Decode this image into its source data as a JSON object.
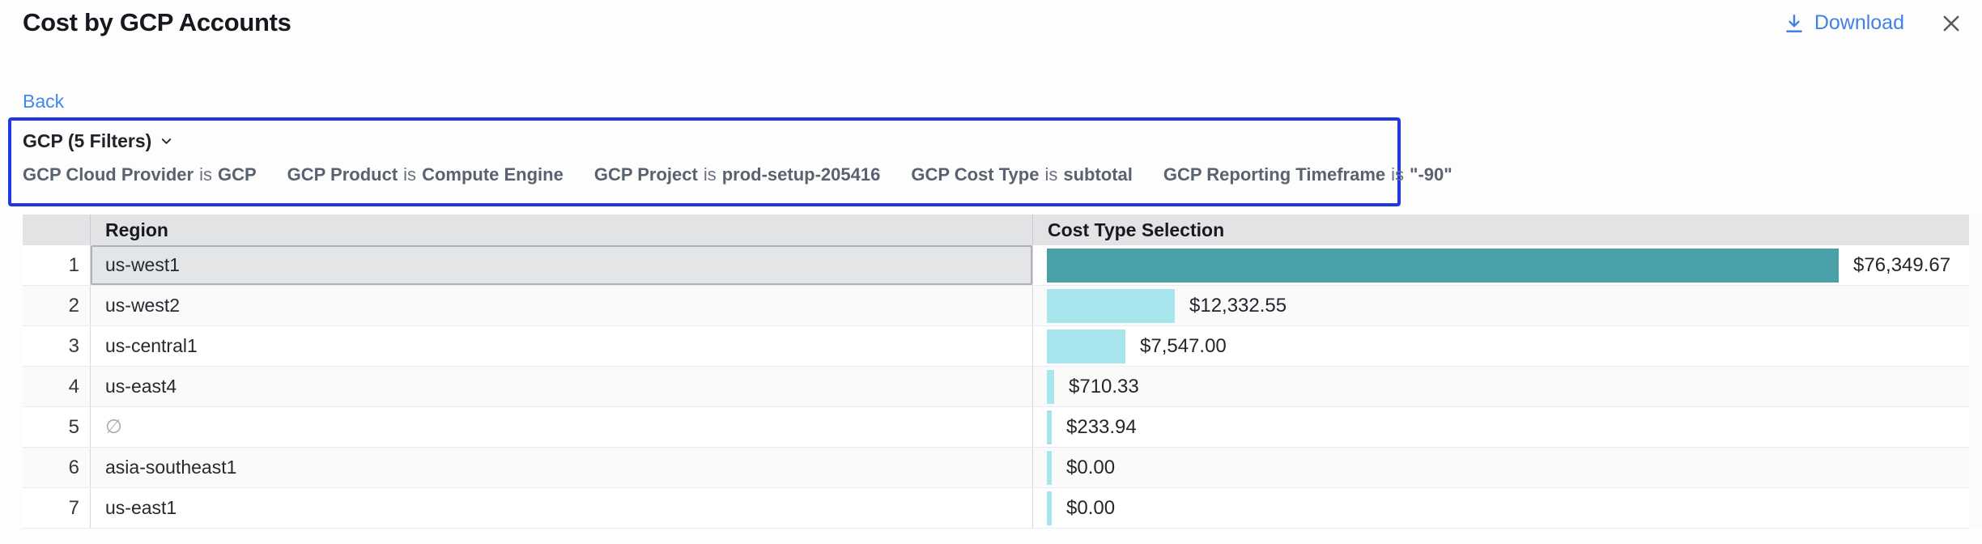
{
  "header": {
    "title": "Cost by GCP Accounts",
    "download_label": "Download"
  },
  "nav": {
    "back_label": "Back"
  },
  "filters": {
    "summary_label": "GCP (5 Filters)",
    "items": [
      {
        "name": "GCP Cloud Provider",
        "op": "is",
        "value": "GCP"
      },
      {
        "name": "GCP Product",
        "op": "is",
        "value": "Compute Engine"
      },
      {
        "name": "GCP Project",
        "op": "is",
        "value": "prod-setup-205416"
      },
      {
        "name": "GCP Cost Type",
        "op": "is",
        "value": "subtotal"
      },
      {
        "name": "GCP Reporting Timeframe",
        "op": "is",
        "value": "\"-90\""
      }
    ]
  },
  "table": {
    "columns": {
      "region": "Region",
      "cost": "Cost Type Selection"
    },
    "rows": [
      {
        "num": "1",
        "region": "us-west1",
        "value": 76349.67,
        "label": "$76,349.67",
        "selected": true
      },
      {
        "num": "2",
        "region": "us-west2",
        "value": 12332.55,
        "label": "$12,332.55",
        "selected": false
      },
      {
        "num": "3",
        "region": "us-central1",
        "value": 7547.0,
        "label": "$7,547.00",
        "selected": false
      },
      {
        "num": "4",
        "region": "us-east4",
        "value": 710.33,
        "label": "$710.33",
        "selected": false
      },
      {
        "num": "5",
        "region": "∅",
        "is_null": true,
        "value": 233.94,
        "label": "$233.94",
        "selected": false
      },
      {
        "num": "6",
        "region": "asia-southeast1",
        "value": 0.0,
        "label": "$0.00",
        "selected": false
      },
      {
        "num": "7",
        "region": "us-east1",
        "value": 0.0,
        "label": "$0.00",
        "selected": false
      }
    ]
  },
  "chart_data": {
    "type": "bar",
    "orientation": "horizontal",
    "categories": [
      "us-west1",
      "us-west2",
      "us-central1",
      "us-east4",
      "∅",
      "asia-southeast1",
      "us-east1"
    ],
    "values": [
      76349.67,
      12332.55,
      7547.0,
      710.33,
      233.94,
      0.0,
      0.0
    ],
    "value_labels": [
      "$76,349.67",
      "$12,332.55",
      "$7,547.00",
      "$710.33",
      "$233.94",
      "$0.00",
      "$0.00"
    ],
    "title": "Cost by GCP Accounts",
    "xlabel": "Cost Type Selection",
    "ylabel": "Region",
    "xlim": [
      0,
      76349.67
    ],
    "grid": false,
    "legend": false
  },
  "colors": {
    "bar_primary": "#4aa0a9",
    "bar_secondary": "#a7e6ed",
    "filter_border": "#1e39e4",
    "link_blue": "#4280e8",
    "close_gray": "#56595f"
  }
}
